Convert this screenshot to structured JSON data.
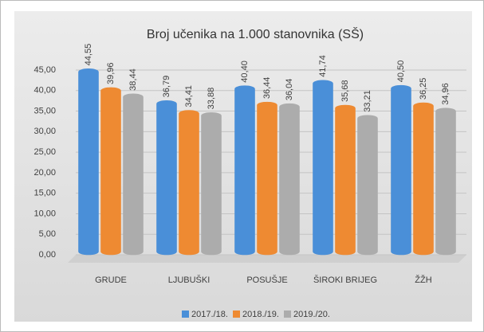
{
  "chart_data": {
    "type": "bar",
    "title": "Broj učenika na 1.000 stanovnika (SŠ)",
    "categories": [
      "GRUDE",
      "LJUBUŠKI",
      "POSUŠJE",
      "ŠIROKI BRIJEG",
      "ŽŽH"
    ],
    "series": [
      {
        "name": "2017./18.",
        "color": "#4a8fd8",
        "values": [
          44.55,
          36.79,
          40.4,
          41.74,
          40.5
        ],
        "value_labels": [
          "44,55",
          "36,79",
          "40,40",
          "41,74",
          "40,50"
        ]
      },
      {
        "name": "2018./19.",
        "color": "#ee8a32",
        "values": [
          39.96,
          34.41,
          36.44,
          35.68,
          36.25
        ],
        "value_labels": [
          "39,96",
          "34,41",
          "36,44",
          "35,68",
          "36,25"
        ]
      },
      {
        "name": "2019./20.",
        "color": "#acacac",
        "values": [
          38.44,
          33.88,
          36.04,
          33.21,
          34.96
        ],
        "value_labels": [
          "38,44",
          "33,88",
          "36,04",
          "33,21",
          "34,96"
        ]
      }
    ],
    "ylim": [
      0,
      45
    ],
    "yticks": [
      {
        "value": 0,
        "label": "0,00"
      },
      {
        "value": 5,
        "label": "5,00"
      },
      {
        "value": 10,
        "label": "10,00"
      },
      {
        "value": 15,
        "label": "15,00"
      },
      {
        "value": 20,
        "label": "20,00"
      },
      {
        "value": 25,
        "label": "25,00"
      },
      {
        "value": 30,
        "label": "30,00"
      },
      {
        "value": 35,
        "label": "35,00"
      },
      {
        "value": 40,
        "label": "40,00"
      },
      {
        "value": 45,
        "label": "45,00"
      }
    ],
    "grid": true,
    "legend": "bottom"
  }
}
